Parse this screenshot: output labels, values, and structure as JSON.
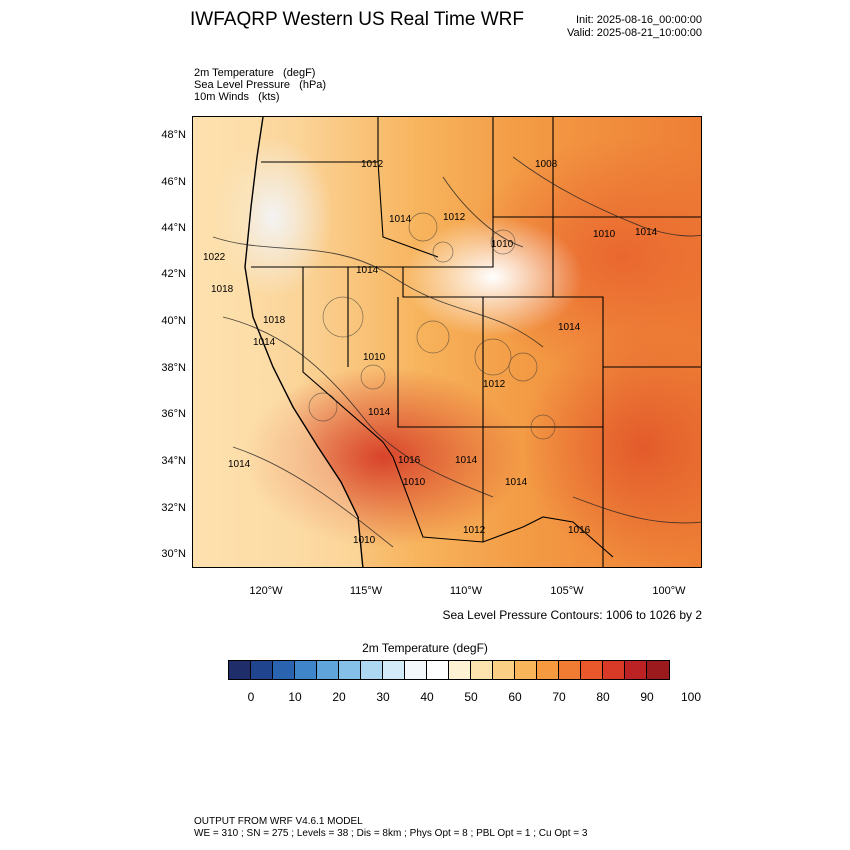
{
  "title": "IWFAQRP Western US Real Time WRF",
  "init": "Init: 2025-08-16_00:00:00",
  "valid": "Valid: 2025-08-21_10:00:00",
  "fields": [
    "2m Temperature   (degF)",
    "Sea Level Pressure   (hPa)",
    "10m Winds   (kts)"
  ],
  "map": {
    "lat_labels": [
      "48°N",
      "46°N",
      "44°N",
      "42°N",
      "40°N",
      "38°N",
      "36°N",
      "34°N",
      "32°N",
      "30°N"
    ],
    "lon_labels": [
      "120°W",
      "115°W",
      "110°W",
      "105°W",
      "100°W"
    ],
    "isobar_labels": [
      "1008",
      "1010",
      "1014",
      "1012",
      "1014",
      "1012",
      "1010",
      "1022",
      "1014",
      "1018",
      "1018",
      "1014",
      "1014",
      "1010",
      "1012",
      "1014",
      "1016",
      "1014",
      "1014",
      "1010",
      "1014",
      "1010",
      "1012",
      "1016"
    ]
  },
  "slp_note": "Sea Level Pressure Contours: 1006 to 1026 by 2",
  "colorbar": {
    "title": "2m Temperature  (degF)",
    "colors": [
      "#1f2d6b",
      "#21448f",
      "#2a63b0",
      "#3f85c9",
      "#5fa4da",
      "#84c0e8",
      "#aed8f2",
      "#d3ebf8",
      "#f2f8fc",
      "#ffffff",
      "#fef2d4",
      "#fde3ad",
      "#fbcf84",
      "#f9b55a",
      "#f6993f",
      "#f07c33",
      "#e8582b",
      "#d83a27",
      "#bc2224",
      "#9a1a1e"
    ],
    "ticks": [
      "0",
      "10",
      "20",
      "30",
      "40",
      "50",
      "60",
      "70",
      "80",
      "90",
      "100"
    ]
  },
  "footer": {
    "line1": "OUTPUT FROM WRF V4.6.1 MODEL",
    "line2": "WE = 310 ; SN = 275 ; Levels = 38 ; Dis = 8km ; Phys Opt = 8 ; PBL Opt = 1 ; Cu Opt = 3"
  }
}
